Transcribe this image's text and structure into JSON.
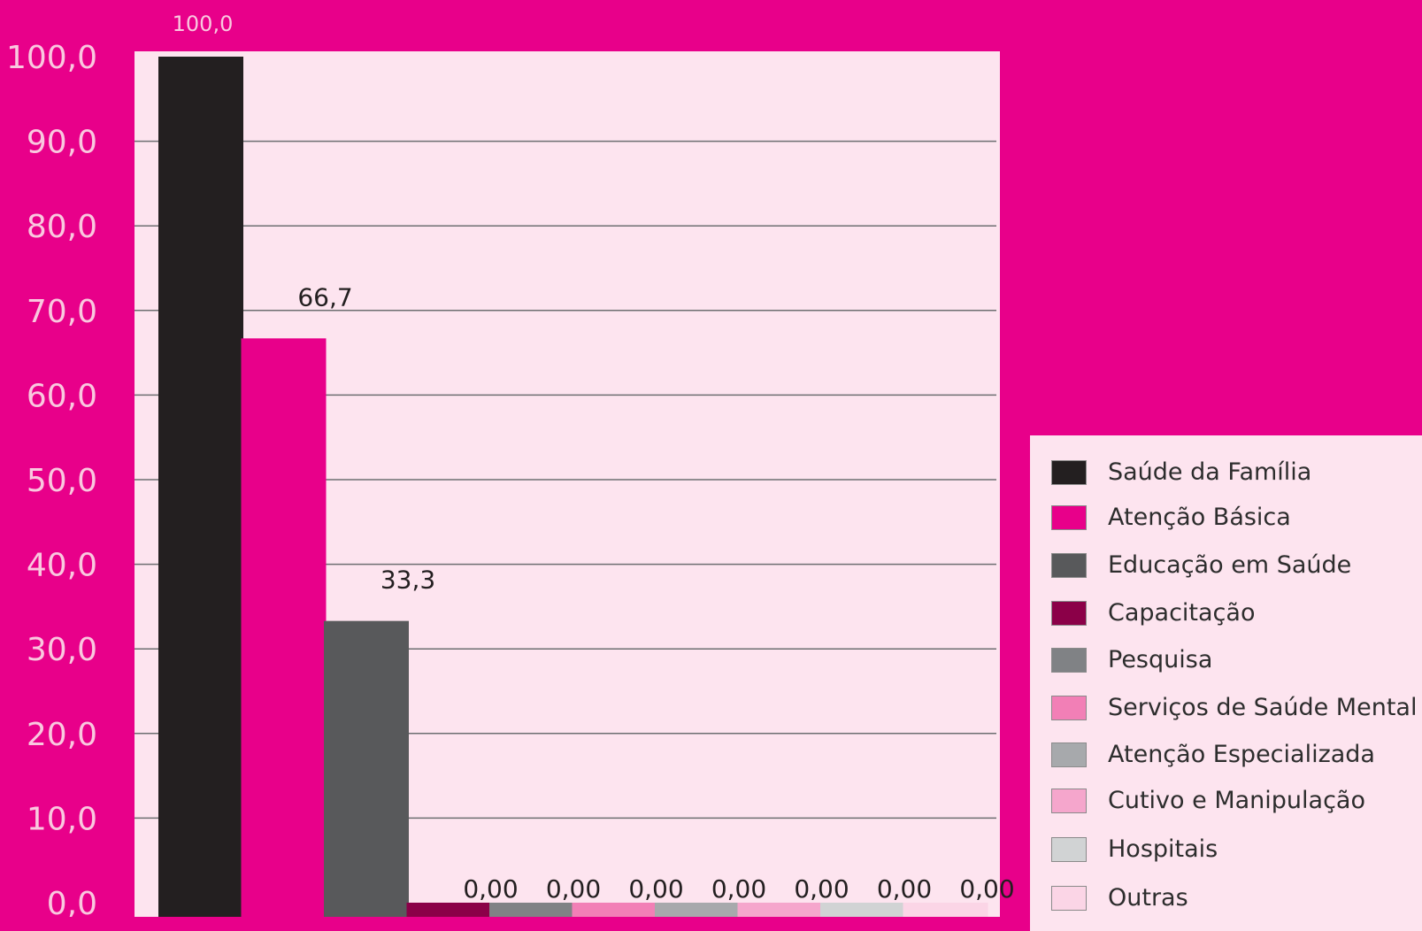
{
  "chart_data": {
    "type": "bar",
    "categories": [
      "Saúde da Família",
      "Atenção Básica",
      "Educação em Saúde",
      "Capacitação",
      "Pesquisa",
      "Serviços de Saúde Mental",
      "Atenção Especializada",
      "Cutivo e Manipulação",
      "Hospitais",
      "Outras"
    ],
    "values": [
      100.0,
      66.7,
      33.3,
      0.0,
      0.0,
      0.0,
      0.0,
      0.0,
      0.0,
      0.0
    ],
    "value_labels": [
      "100,0",
      "66,7",
      "33,3",
      "0,00",
      "0,00",
      "0,00",
      "0,00",
      "0,00",
      "0,00",
      "0,00"
    ],
    "y_tick_labels": [
      "0,0",
      "10,0",
      "20,0",
      "30,0",
      "40,0",
      "50,0",
      "60,0",
      "70,0",
      "80,0",
      "90,0",
      "100,0"
    ],
    "y_tick_values": [
      0,
      10,
      20,
      30,
      40,
      50,
      60,
      70,
      80,
      90,
      100
    ],
    "ylim": [
      0,
      100
    ],
    "colors": [
      "#231f20",
      "#e8008a",
      "#58595b",
      "#8b0048",
      "#808285",
      "#f27fb6",
      "#a7a9ac",
      "#f5a6cc",
      "#d1d3d4",
      "#fbd5e6"
    ],
    "title": "",
    "xlabel": "",
    "ylabel": "",
    "grid": true,
    "legend_position": "right"
  },
  "legend": {
    "items": [
      {
        "label": "Saúde da Família",
        "color": "#231f20"
      },
      {
        "label": "Atenção Básica",
        "color": "#e8008a"
      },
      {
        "label": "Educação em Saúde",
        "color": "#58595b"
      },
      {
        "label": "Capacitação",
        "color": "#8b0048"
      },
      {
        "label": "Pesquisa",
        "color": "#808285"
      },
      {
        "label": "Serviços de Saúde Mental",
        "color": "#f27fb6"
      },
      {
        "label": "Atenção Especializada",
        "color": "#a7a9ac"
      },
      {
        "label": "Cutivo e Manipulação",
        "color": "#f5a6cc"
      },
      {
        "label": "Hospitais",
        "color": "#d1d3d4"
      },
      {
        "label": "Outras",
        "color": "#fbd5e6"
      }
    ]
  },
  "colors": {
    "background": "#e8008a",
    "plot_background": "#fde4ef",
    "gridline": "#6d6e71",
    "axis_text": "#f9c8df",
    "value_text": "#231f20",
    "top_value_text": "#f9c8df"
  }
}
